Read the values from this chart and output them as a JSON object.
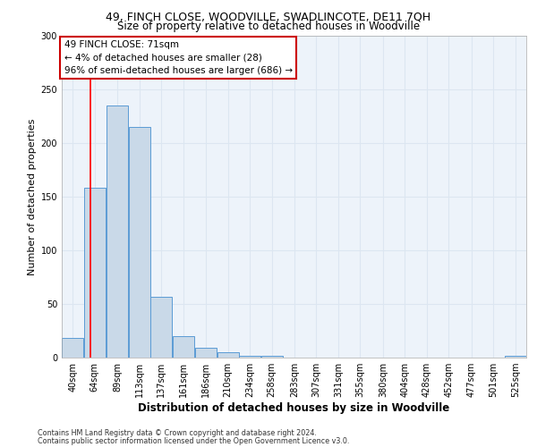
{
  "title1": "49, FINCH CLOSE, WOODVILLE, SWADLINCOTE, DE11 7QH",
  "title2": "Size of property relative to detached houses in Woodville",
  "xlabel": "Distribution of detached houses by size in Woodville",
  "ylabel": "Number of detached properties",
  "bin_labels": [
    "40sqm",
    "64sqm",
    "89sqm",
    "113sqm",
    "137sqm",
    "161sqm",
    "186sqm",
    "210sqm",
    "234sqm",
    "258sqm",
    "283sqm",
    "307sqm",
    "331sqm",
    "355sqm",
    "380sqm",
    "404sqm",
    "428sqm",
    "452sqm",
    "477sqm",
    "501sqm",
    "525sqm"
  ],
  "bin_edges": [
    40,
    64,
    89,
    113,
    137,
    161,
    186,
    210,
    234,
    258,
    283,
    307,
    331,
    355,
    380,
    404,
    428,
    452,
    477,
    501,
    525,
    549
  ],
  "bar_heights": [
    18,
    158,
    235,
    215,
    57,
    20,
    9,
    5,
    2,
    2,
    0,
    0,
    0,
    0,
    0,
    0,
    0,
    0,
    0,
    0,
    2
  ],
  "bar_color": "#c9d9e8",
  "bar_edgecolor": "#5b9bd5",
  "grid_color": "#dce6f1",
  "bg_color": "#edf3fa",
  "redline_x": 71,
  "annotation_text": "49 FINCH CLOSE: 71sqm\n← 4% of detached houses are smaller (28)\n96% of semi-detached houses are larger (686) →",
  "annotation_box_color": "#ffffff",
  "annotation_border_color": "#cc0000",
  "ylim": [
    0,
    300
  ],
  "yticks": [
    0,
    50,
    100,
    150,
    200,
    250,
    300
  ],
  "footer1": "Contains HM Land Registry data © Crown copyright and database right 2024.",
  "footer2": "Contains public sector information licensed under the Open Government Licence v3.0.",
  "title1_fontsize": 9,
  "title2_fontsize": 8.5,
  "ylabel_fontsize": 8,
  "xlabel_fontsize": 8.5
}
